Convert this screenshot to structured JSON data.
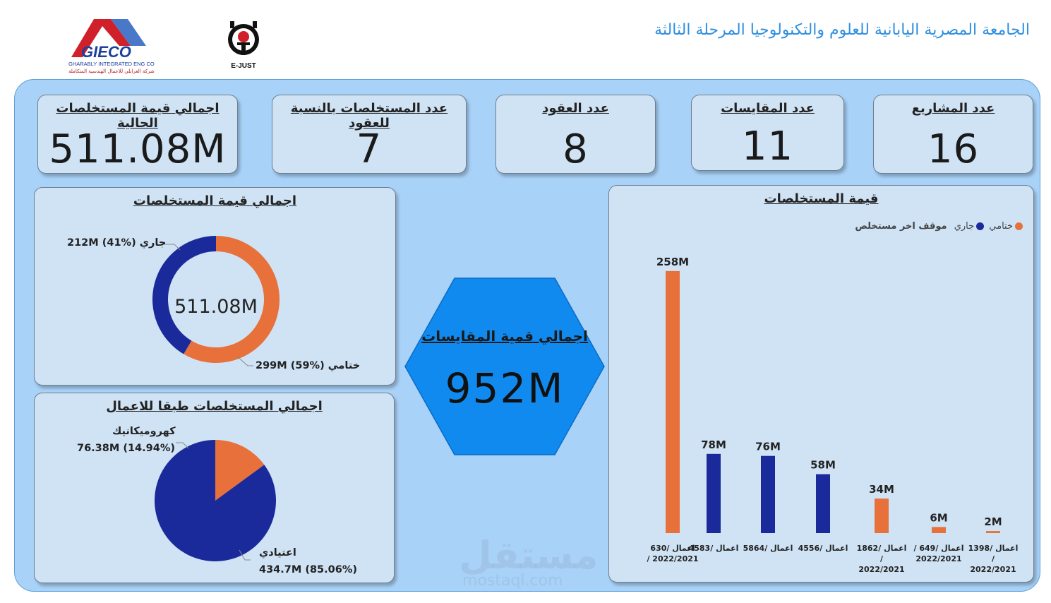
{
  "header": {
    "title": "الجامعة المصرية اليابانية للعلوم والتكنولوجيا المرحلة الثالثة"
  },
  "logos": {
    "gieco": {
      "name": "GIECO",
      "subtitle": "GHARABLY INTEGRATED ENG CO",
      "arabic": "شركة الغرابلي للاعمال الهندسية المتكاملة"
    },
    "ejust": {
      "name": "E-JUST"
    }
  },
  "kpis": [
    {
      "title": "عدد المشاريع",
      "value": "16"
    },
    {
      "title": "عدد المقايسات",
      "value": "11"
    },
    {
      "title": "عدد العقود",
      "value": "8"
    },
    {
      "title": "عدد المستخلصات بالنسبة للعقود",
      "value": "7"
    },
    {
      "title": "اجمالي قيمة المستخلصات الحالية",
      "value": "511.08M"
    }
  ],
  "donut": {
    "title": "اجمالي قيمة المستخلصات",
    "center": "511.08M",
    "label_running": "212M (41%) جاري",
    "label_final": "299M (59%) ختامي",
    "slices": [
      {
        "name": "ختامي",
        "value": 299,
        "color": "#e8703a"
      },
      {
        "name": "جاري",
        "value": 212,
        "color": "#1a2a9a"
      }
    ]
  },
  "pie": {
    "title": "اجمالي المستخلصات طبقا للاعمال",
    "label_electro_name": "كهروميكانيك",
    "label_electro_value": "76.38M (14.94%)",
    "label_normal_name": "اعتيادي",
    "label_normal_value": "434.7M (85.06%)",
    "slices": [
      {
        "name": "كهروميكانيك",
        "value": 76.38,
        "color": "#e8703a"
      },
      {
        "name": "اعتيادي",
        "value": 434.7,
        "color": "#1a2a9a"
      }
    ]
  },
  "hexagon": {
    "title": "اجمالي قمية المقايسات",
    "value": "952M"
  },
  "chart_data": {
    "type": "bar",
    "title": "قيمة المستخلصات",
    "legend_title": "موقف اخر مستخلص",
    "legend": [
      {
        "name": "ختامي",
        "color": "#e8703a"
      },
      {
        "name": "جاري",
        "color": "#1a2a9a"
      }
    ],
    "categories": [
      [
        "اعمال /630",
        "2022/2021 /"
      ],
      [
        "اعمال /4583"
      ],
      [
        "اعمال /5864"
      ],
      [
        "اعمال /4556"
      ],
      [
        "اعمال /1862",
        "/",
        "2022/2021"
      ],
      [
        "اعمال /649 /",
        "2022/2021"
      ],
      [
        "اعمال /1398",
        "/",
        "2022/2021"
      ]
    ],
    "values": [
      258,
      78,
      76,
      58,
      34,
      6,
      2
    ],
    "labels": [
      "258M",
      "78M",
      "76M",
      "58M",
      "34M",
      "6M",
      "2M"
    ],
    "status": [
      "ختامي",
      "جاري",
      "جاري",
      "جاري",
      "ختامي",
      "ختامي",
      "ختامي"
    ],
    "ylim": [
      0,
      260
    ]
  },
  "watermark": {
    "text": "مستقل",
    "domain": "mostaql.com"
  }
}
